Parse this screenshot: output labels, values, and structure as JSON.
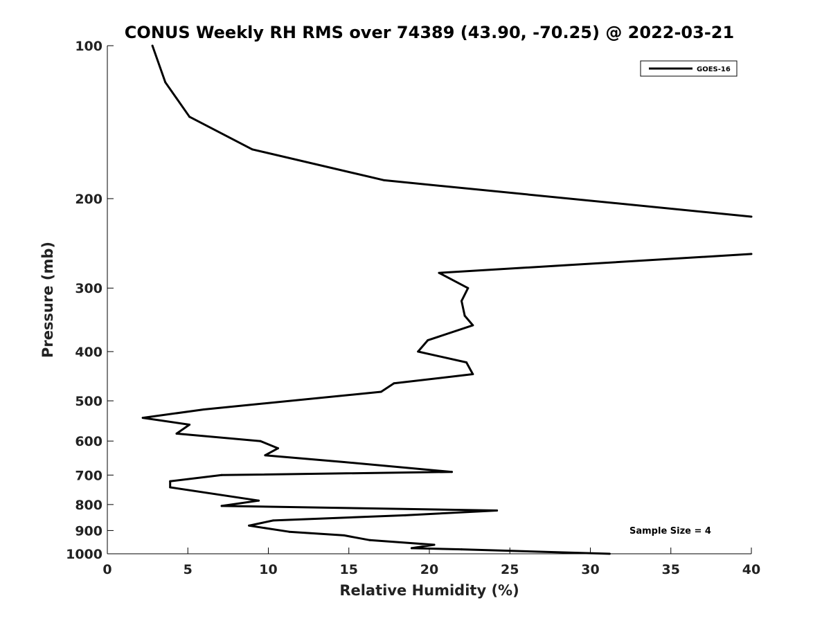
{
  "chart_data": {
    "type": "line",
    "title": "CONUS Weekly RH RMS over 74389 (43.90, -70.25) @ 2022-03-21",
    "xlabel": "Relative Humidity (%)",
    "ylabel": "Pressure (mb)",
    "xlim": [
      0,
      40
    ],
    "ylim": [
      100,
      1000
    ],
    "y_scale": "log",
    "y_direction": "reversed",
    "x_ticks": [
      "0",
      "5",
      "10",
      "15",
      "20",
      "25",
      "30",
      "35",
      "40"
    ],
    "y_ticks": [
      "100",
      "200",
      "300",
      "400",
      "500",
      "600",
      "700",
      "800",
      "900",
      "1000"
    ],
    "grid": false,
    "legend_position": "top-right",
    "annotation": "Sample Size = 4",
    "series": [
      {
        "name": "GOES-16",
        "color": "#000000",
        "segments": [
          [
            {
              "x": 2.8,
              "y": 100
            },
            {
              "x": 3.6,
              "y": 118
            },
            {
              "x": 5.1,
              "y": 138
            },
            {
              "x": 9.0,
              "y": 160
            },
            {
              "x": 17.2,
              "y": 184
            },
            {
              "x": 40.0,
              "y": 217
            }
          ],
          [
            {
              "x": 40.0,
              "y": 257
            },
            {
              "x": 20.6,
              "y": 280
            },
            {
              "x": 22.4,
              "y": 300
            },
            {
              "x": 22.0,
              "y": 318
            },
            {
              "x": 22.2,
              "y": 340
            },
            {
              "x": 22.7,
              "y": 355
            },
            {
              "x": 19.9,
              "y": 380
            },
            {
              "x": 19.3,
              "y": 400
            },
            {
              "x": 22.3,
              "y": 420
            },
            {
              "x": 22.7,
              "y": 443
            },
            {
              "x": 17.8,
              "y": 462
            },
            {
              "x": 17.0,
              "y": 480
            },
            {
              "x": 6.0,
              "y": 520
            },
            {
              "x": 2.2,
              "y": 540
            },
            {
              "x": 5.1,
              "y": 557
            },
            {
              "x": 4.3,
              "y": 580
            },
            {
              "x": 9.5,
              "y": 600
            },
            {
              "x": 10.6,
              "y": 620
            },
            {
              "x": 9.8,
              "y": 640
            },
            {
              "x": 14.7,
              "y": 660
            },
            {
              "x": 21.4,
              "y": 690
            },
            {
              "x": 7.1,
              "y": 700
            },
            {
              "x": 3.9,
              "y": 720
            },
            {
              "x": 3.9,
              "y": 740
            },
            {
              "x": 9.4,
              "y": 786
            },
            {
              "x": 7.1,
              "y": 805
            },
            {
              "x": 24.2,
              "y": 822
            },
            {
              "x": 18.5,
              "y": 840
            },
            {
              "x": 10.3,
              "y": 860
            },
            {
              "x": 8.8,
              "y": 880
            },
            {
              "x": 11.3,
              "y": 905
            },
            {
              "x": 14.7,
              "y": 920
            },
            {
              "x": 16.3,
              "y": 940
            },
            {
              "x": 20.3,
              "y": 960
            },
            {
              "x": 18.9,
              "y": 975
            },
            {
              "x": 22.0,
              "y": 980
            },
            {
              "x": 31.2,
              "y": 1000
            }
          ]
        ]
      }
    ]
  }
}
